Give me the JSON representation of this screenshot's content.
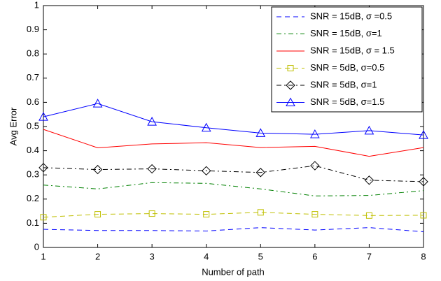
{
  "chart_data": {
    "type": "line",
    "x_label": "Number of path",
    "y_label": "Avg Error",
    "x": [
      1,
      2,
      3,
      4,
      5,
      6,
      7,
      8
    ],
    "xlim": [
      1,
      8
    ],
    "xticks": [
      1,
      2,
      3,
      4,
      5,
      6,
      7,
      8
    ],
    "ylim": [
      0,
      1
    ],
    "yticks": [
      0,
      0.1,
      0.2,
      0.3,
      0.4,
      0.5,
      0.6,
      0.7,
      0.8,
      0.9,
      1
    ],
    "grid": false,
    "legend_position": "upper-right",
    "series": [
      {
        "name": "SNR = 15dB, σ =0.5",
        "color": "#0000ff",
        "linestyle": "dashed",
        "marker": "none",
        "values": [
          0.075,
          0.07,
          0.07,
          0.068,
          0.082,
          0.072,
          0.082,
          0.065
        ]
      },
      {
        "name": "SNR = 15dB, σ=1",
        "color": "#008000",
        "linestyle": "dashdot",
        "marker": "none",
        "values": [
          0.258,
          0.242,
          0.268,
          0.265,
          0.242,
          0.213,
          0.215,
          0.235
        ]
      },
      {
        "name": "SNR = 15dB, σ = 1.5",
        "color": "#ff0000",
        "linestyle": "solid",
        "marker": "none",
        "values": [
          0.488,
          0.412,
          0.428,
          0.433,
          0.413,
          0.418,
          0.377,
          0.413
        ]
      },
      {
        "name": "SNR = 5dB, σ=0.5",
        "color": "#bfbf00",
        "linestyle": "dashed",
        "marker": "square",
        "values": [
          0.125,
          0.137,
          0.14,
          0.137,
          0.145,
          0.137,
          0.132,
          0.133
        ]
      },
      {
        "name": "SNR = 5dB, σ=1",
        "color": "#000000",
        "linestyle": "dashdot",
        "marker": "diamond",
        "values": [
          0.33,
          0.322,
          0.325,
          0.317,
          0.31,
          0.338,
          0.278,
          0.272
        ]
      },
      {
        "name": "SNR = 5dB, σ=1.5",
        "color": "#0000ff",
        "linestyle": "solid",
        "marker": "triangle",
        "values": [
          0.54,
          0.595,
          0.52,
          0.495,
          0.473,
          0.468,
          0.483,
          0.465
        ]
      }
    ]
  }
}
